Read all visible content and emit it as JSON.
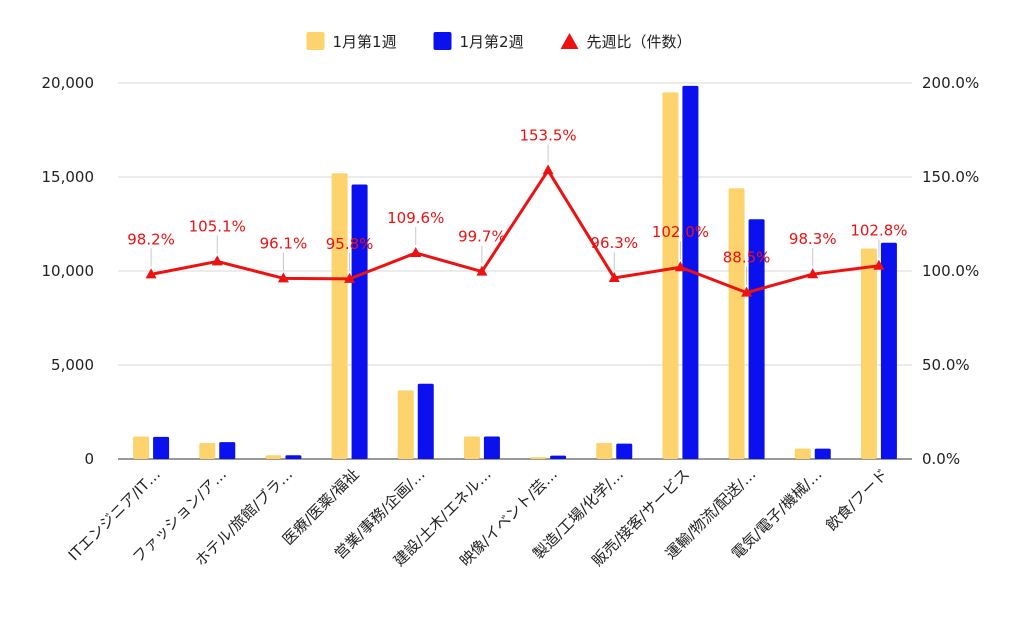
{
  "chart_data": {
    "type": "bar",
    "title": "",
    "xlabel": "",
    "ylabel": "",
    "y2label": "",
    "grid": true,
    "legend_position": "top-center",
    "categories": [
      "ITエンジニア/IT…",
      "ファッション/ア…",
      "ホテル/旅館/ブラ…",
      "医療/医薬/福祉",
      "営業/事務/企画/…",
      "建設/土木/エネル…",
      "映像/イベント/芸…",
      "製造/工場/化学/…",
      "販売/接客/サービス",
      "運輸/物流/配送/…",
      "電気/電子/機械/…",
      "飲食/フード"
    ],
    "series": [
      {
        "name": "1月第1週",
        "kind": "bar",
        "axis": "left",
        "color": "#fdd36e",
        "values": [
          1200,
          850,
          200,
          15200,
          3650,
          1200,
          100,
          850,
          19500,
          14400,
          550,
          11200
        ]
      },
      {
        "name": "1月第2週",
        "kind": "bar",
        "axis": "left",
        "color": "#0a10ee",
        "values": [
          1180,
          900,
          200,
          14600,
          4000,
          1200,
          180,
          820,
          19850,
          12750,
          550,
          11500
        ]
      },
      {
        "name": "先週比（件数）",
        "kind": "line",
        "axis": "right",
        "color": "#ee1111",
        "values": [
          98.2,
          105.1,
          96.1,
          95.8,
          109.6,
          99.7,
          153.5,
          96.3,
          102.0,
          88.5,
          98.3,
          102.8
        ],
        "labels": [
          "98.2%",
          "105.1%",
          "96.1%",
          "95.8%",
          "109.6%",
          "99.7%",
          "153.5%",
          "96.3%",
          "102.0%",
          "88.5%",
          "98.3%",
          "102.8%"
        ]
      }
    ],
    "y_axis_left": {
      "min": 0,
      "max": 20000,
      "ticks": [
        0,
        5000,
        10000,
        15000,
        20000
      ],
      "tick_labels": [
        "0",
        "5,000",
        "10,000",
        "15,000",
        "20,000"
      ]
    },
    "y_axis_right": {
      "min": 0,
      "max": 200,
      "ticks": [
        0,
        50,
        100,
        150,
        200
      ],
      "tick_labels": [
        "0.0%",
        "50.0%",
        "100.0%",
        "150.0%",
        "200.0%"
      ]
    }
  }
}
